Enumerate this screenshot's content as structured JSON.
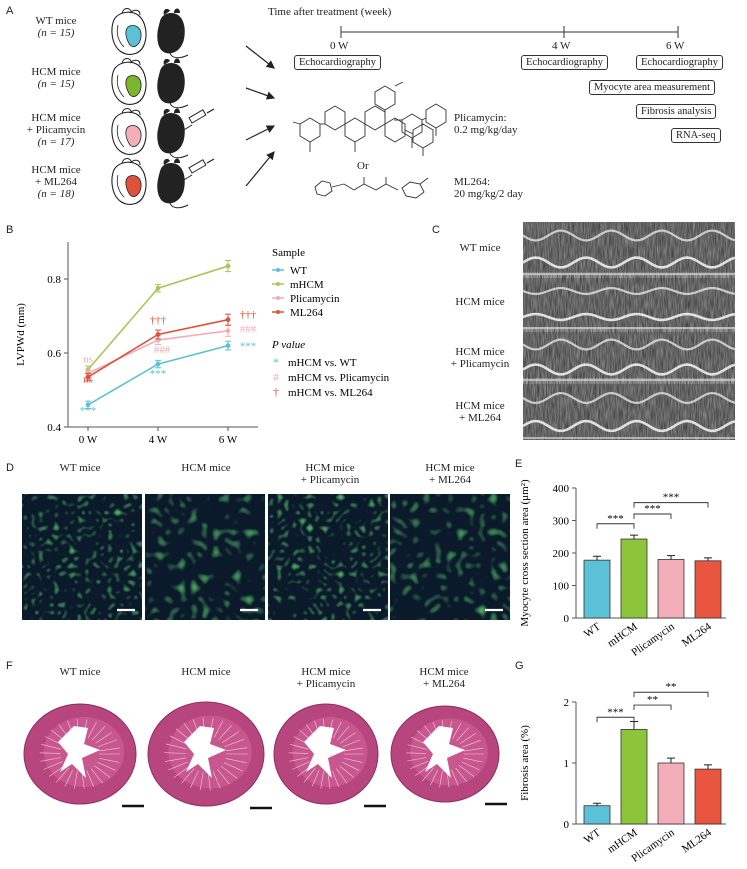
{
  "panels": {
    "A": "A",
    "B": "B",
    "C": "C",
    "D": "D",
    "E": "E",
    "F": "F",
    "G": "G"
  },
  "panelA": {
    "groups": [
      {
        "name": "WT mice",
        "n": "(n = 15)"
      },
      {
        "name": "HCM mice",
        "n": "(n = 15)"
      },
      {
        "name": "HCM mice",
        "n": "+ Plicamycin",
        "extra": "(n = 17)"
      },
      {
        "name": "HCM mice",
        "n": "+ ML264",
        "extra": "(n = 18)"
      }
    ],
    "heart_colors": [
      "#5bc1d6",
      "#7db52e",
      "#f2aeb9",
      "#e0513b"
    ],
    "timeline_title": "Time after treatment (week)",
    "timepoints": [
      "0 W",
      "4 W",
      "6 W"
    ],
    "boxes": [
      "Echocardiography",
      "Echocardiography",
      "Echocardiography",
      "Myocyte area measurement",
      "Fibrosis analysis",
      "RNA-seq"
    ],
    "drug1": "Plicamycin:",
    "drug1_dose": "0.2 mg/kg/day",
    "or": "Or",
    "drug2": "ML264:",
    "drug2_dose": "20 mg/kg/2 day"
  },
  "panelB": {
    "chart_data": {
      "type": "line",
      "x": [
        "0 W",
        "4 W",
        "6 W"
      ],
      "ylabel": "LVPWd (mm)",
      "yticks": [
        "0.4",
        "0.6",
        "0.8"
      ],
      "ylim": [
        0.4,
        0.9
      ],
      "series": [
        {
          "name": "WT",
          "color": "#5bc1d6",
          "values": [
            0.46,
            0.57,
            0.62
          ],
          "err": [
            0.01,
            0.01,
            0.012
          ]
        },
        {
          "name": "mHCM",
          "color": "#a6c85a",
          "values": [
            0.555,
            0.775,
            0.835
          ],
          "err": [
            0.01,
            0.01,
            0.015
          ]
        },
        {
          "name": "Plicamycin",
          "color": "#f3adb8",
          "values": [
            0.545,
            0.635,
            0.66
          ],
          "err": [
            0.01,
            0.012,
            0.015
          ]
        },
        {
          "name": "ML264",
          "color": "#e0513b",
          "values": [
            0.535,
            0.65,
            0.69
          ],
          "err": [
            0.01,
            0.012,
            0.015
          ]
        }
      ],
      "legend_title": "Sample",
      "pvalue_title": "P value",
      "pvalue_entries": [
        {
          "symbol": "*",
          "label": "mHCM vs. WT",
          "color": "#5bc1d6"
        },
        {
          "symbol": "#",
          "label": "mHCM vs. Plicamycin",
          "color": "#f3adb8"
        },
        {
          "symbol": "†",
          "label": "mHCM vs. ML264",
          "color": "#e0513b"
        }
      ],
      "annotations": {
        "ns_pink": "ns",
        "ns_red": "ns",
        "wt_0": "***",
        "wt_4": "***",
        "wt_6": "***",
        "pl_4": "###",
        "pl_6": "###",
        "ml_4": "†††",
        "ml_6": "†††"
      }
    }
  },
  "panelC": {
    "labels": [
      "WT mice",
      "HCM mice",
      "HCM mice\n+ Plicamycin",
      "HCM mice\n+ ML264"
    ],
    "l1": "WT mice",
    "l2": "HCM mice",
    "l3a": "HCM mice",
    "l3b": "+ Plicamycin",
    "l4a": "HCM mice",
    "l4b": "+ ML264"
  },
  "panelD": {
    "t1": "WT mice",
    "t2": "HCM mice",
    "t3a": "HCM mice",
    "t3b": "+ Plicamycin",
    "t4a": "HCM mice",
    "t4b": "+ ML264"
  },
  "panelE": {
    "chart_data": {
      "type": "bar",
      "categories": [
        "WT",
        "mHCM",
        "Plicamycin",
        "ML264"
      ],
      "values": [
        178,
        243,
        180,
        176
      ],
      "err": [
        12,
        12,
        12,
        9
      ],
      "colors": [
        "#5bc1d6",
        "#8cc43a",
        "#f3adb8",
        "#e9553f"
      ],
      "ylabel": "Myocyte cross section area (μm²)",
      "yticks": [
        "0",
        "100",
        "200",
        "300",
        "400"
      ],
      "ylim": [
        0,
        400
      ],
      "sig": [
        "***",
        "***",
        "***"
      ]
    }
  },
  "panelF": {
    "t1": "WT mice",
    "t2": "HCM mice",
    "t3a": "HCM mice",
    "t3b": "+ Plicamycin",
    "t4a": "HCM mice",
    "t4b": "+ ML264"
  },
  "panelG": {
    "chart_data": {
      "type": "bar",
      "categories": [
        "WT",
        "mHCM",
        "Plicamycin",
        "ML264"
      ],
      "values": [
        0.3,
        1.55,
        1.0,
        0.9
      ],
      "err": [
        0.04,
        0.13,
        0.08,
        0.07
      ],
      "colors": [
        "#5bc1d6",
        "#8cc43a",
        "#f3adb8",
        "#e9553f"
      ],
      "ylabel": "Fibrosis area (%)",
      "yticks": [
        "0",
        "1",
        "2"
      ],
      "ylim": [
        0,
        2
      ],
      "sig": [
        "***",
        "**",
        "**"
      ]
    }
  }
}
